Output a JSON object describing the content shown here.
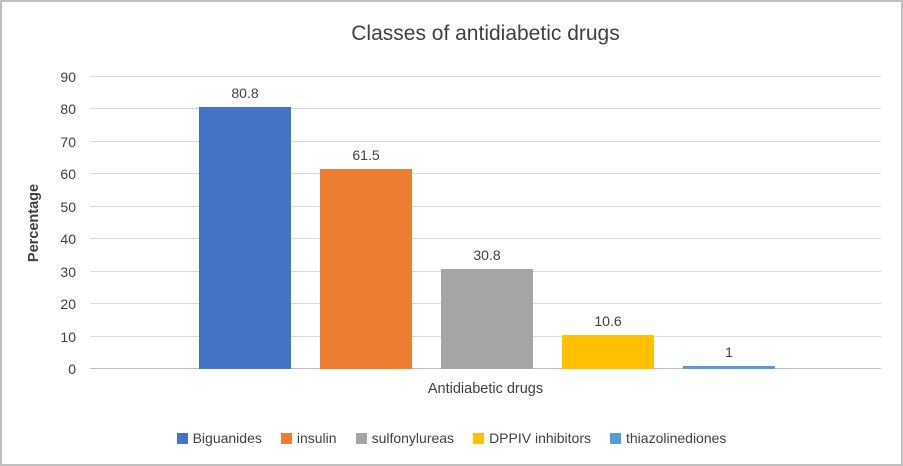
{
  "chart_data": {
    "type": "bar",
    "title": "Classes of antidiabetic drugs",
    "xlabel": "Antidiabetic drugs",
    "ylabel": "Percentage",
    "ylim": [
      0,
      90
    ],
    "yticks": [
      0,
      10,
      20,
      30,
      40,
      50,
      60,
      70,
      80,
      90
    ],
    "grid": true,
    "legend_position": "bottom",
    "categories": [
      "Biguanides",
      "insulin",
      "sulfonylureas",
      "DPPIV inhibitors",
      "thiazolinediones"
    ],
    "values": [
      80.8,
      61.5,
      30.8,
      10.6,
      1
    ],
    "data_labels": [
      "80.8",
      "61.5",
      "30.8",
      "10.6",
      "1"
    ],
    "colors": [
      "#4472C4",
      "#ED7D31",
      "#A5A5A5",
      "#FFC000",
      "#5B9BD5"
    ]
  }
}
